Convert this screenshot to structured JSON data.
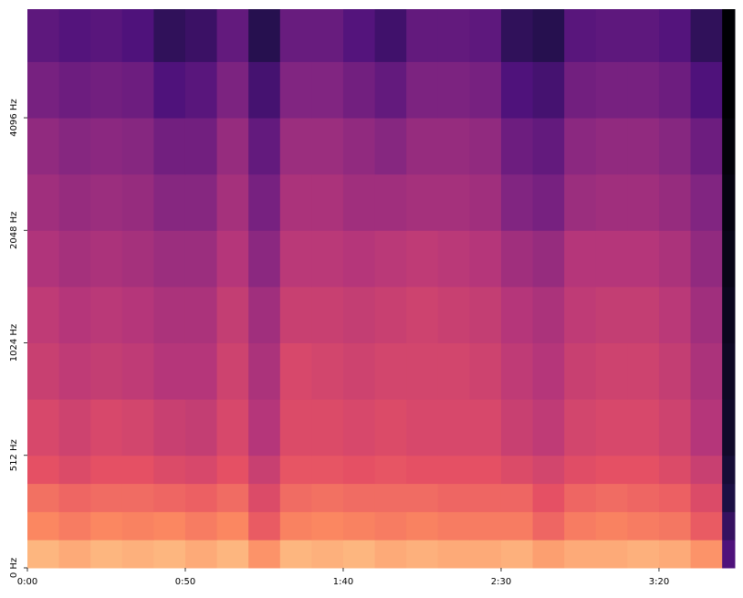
{
  "chart_data": {
    "type": "spectrogram",
    "time_bins": [
      0,
      10,
      20,
      30,
      40,
      50,
      60,
      70,
      80,
      90,
      100,
      110,
      120,
      130,
      140,
      150,
      160,
      170,
      180,
      190,
      200,
      210,
      220,
      224
    ],
    "freq_bins": [
      0,
      128,
      256,
      384,
      512,
      724,
      1024,
      1448,
      2048,
      2896,
      4096,
      5793,
      8000
    ],
    "values": [
      [
        -12,
        -14,
        -12,
        -13,
        -12,
        -14,
        -12,
        -18,
        -12,
        -13,
        -12,
        -14,
        -13,
        -14,
        -14,
        -13,
        -16,
        -14,
        -14,
        -13,
        -14,
        -18,
        -60
      ],
      [
        -20,
        -22,
        -20,
        -21,
        -20,
        -22,
        -20,
        -28,
        -21,
        -20,
        -21,
        -22,
        -21,
        -22,
        -22,
        -22,
        -26,
        -22,
        -21,
        -22,
        -23,
        -28,
        -65
      ],
      [
        -24,
        -26,
        -25,
        -25,
        -26,
        -27,
        -25,
        -32,
        -25,
        -24,
        -25,
        -25,
        -25,
        -26,
        -26,
        -26,
        -30,
        -26,
        -25,
        -26,
        -27,
        -32,
        -70
      ],
      [
        -30,
        -32,
        -30,
        -30,
        -32,
        -33,
        -30,
        -36,
        -29,
        -29,
        -30,
        -29,
        -30,
        -30,
        -30,
        -32,
        -34,
        -31,
        -30,
        -30,
        -32,
        -36,
        -72
      ],
      [
        -33,
        -35,
        -33,
        -34,
        -36,
        -37,
        -33,
        -40,
        -32,
        -32,
        -33,
        -32,
        -33,
        -33,
        -33,
        -36,
        -38,
        -34,
        -33,
        -33,
        -35,
        -40,
        -74
      ],
      [
        -36,
        -38,
        -37,
        -38,
        -40,
        -40,
        -35,
        -42,
        -33,
        -34,
        -35,
        -34,
        -34,
        -34,
        -35,
        -38,
        -40,
        -36,
        -35,
        -35,
        -37,
        -42,
        -75
      ],
      [
        -38,
        -40,
        -39,
        -40,
        -42,
        -42,
        -37,
        -44,
        -36,
        -36,
        -37,
        -36,
        -35,
        -36,
        -37,
        -40,
        -42,
        -38,
        -37,
        -37,
        -39,
        -44,
        -76
      ],
      [
        -41,
        -43,
        -42,
        -43,
        -45,
        -45,
        -40,
        -48,
        -39,
        -39,
        -40,
        -39,
        -38,
        -39,
        -40,
        -44,
        -46,
        -40,
        -40,
        -40,
        -42,
        -47,
        -77
      ],
      [
        -44,
        -46,
        -45,
        -46,
        -49,
        -49,
        -43,
        -52,
        -42,
        -42,
        -44,
        -44,
        -43,
        -43,
        -44,
        -50,
        -52,
        -45,
        -44,
        -44,
        -46,
        -50,
        -78
      ],
      [
        -47,
        -49,
        -48,
        -49,
        -53,
        -53,
        -46,
        -56,
        -45,
        -45,
        -47,
        -49,
        -46,
        -46,
        -47,
        -54,
        -56,
        -48,
        -47,
        -47,
        -49,
        -54,
        -79
      ],
      [
        -52,
        -54,
        -53,
        -54,
        -60,
        -58,
        -51,
        -62,
        -50,
        -50,
        -53,
        -56,
        -51,
        -51,
        -52,
        -60,
        -62,
        -53,
        -52,
        -52,
        -54,
        -60,
        -80
      ],
      [
        -57,
        -59,
        -58,
        -60,
        -66,
        -64,
        -56,
        -68,
        -55,
        -55,
        -59,
        -63,
        -56,
        -56,
        -57,
        -66,
        -68,
        -58,
        -57,
        -57,
        -59,
        -66,
        -80
      ]
    ],
    "zlim": [
      -80,
      0
    ],
    "colormap": "magma",
    "xlim": [
      0,
      224
    ],
    "xticks": [
      {
        "value": 0,
        "label": "0:00"
      },
      {
        "value": 50,
        "label": "0:50"
      },
      {
        "value": 100,
        "label": "1:40"
      },
      {
        "value": 150,
        "label": "2:30"
      },
      {
        "value": 200,
        "label": "3:20"
      }
    ],
    "ylim": [
      0,
      8000
    ],
    "yscale": "symlog",
    "linthresh": 512,
    "yticks": [
      {
        "value": 0,
        "label": "0 Hz"
      },
      {
        "value": 512,
        "label": "512 Hz"
      },
      {
        "value": 1024,
        "label": "1024 Hz"
      },
      {
        "value": 2048,
        "label": "2048 Hz"
      },
      {
        "value": 4096,
        "label": "4096 Hz"
      }
    ]
  }
}
